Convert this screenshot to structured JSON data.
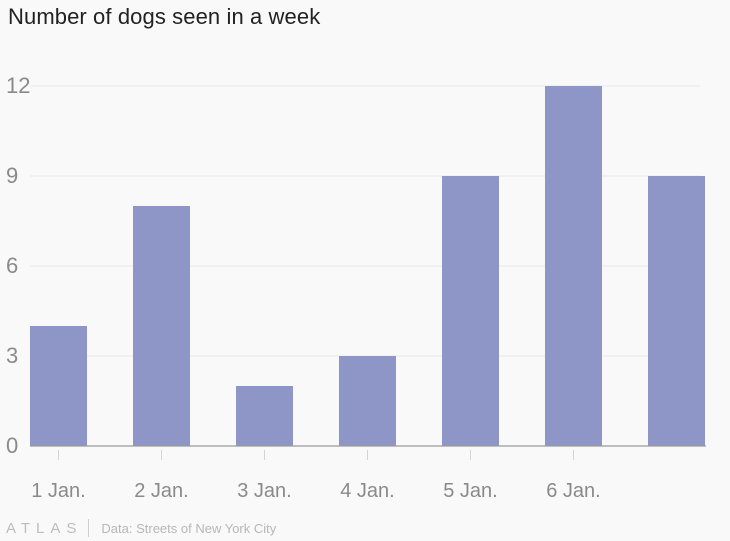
{
  "colors": {
    "bar": "#8e96c8",
    "grid": "#e6e6e6",
    "axis": "#9a9a9a",
    "tick_text": "#8a8a8a"
  },
  "footer": {
    "logo": "ATLAS",
    "source": "Data: Streets of New York City"
  },
  "chart_data": {
    "type": "bar",
    "title": "Number of dogs seen in a week",
    "categories": [
      "1 Jan.",
      "2 Jan.",
      "3 Jan.",
      "4 Jan.",
      "5 Jan.",
      "6 Jan.",
      ""
    ],
    "values": [
      4,
      8,
      2,
      3,
      9,
      12,
      9
    ],
    "ylim": [
      0,
      12
    ],
    "yticks": [
      0,
      3,
      6,
      9,
      12
    ],
    "grid": true
  }
}
